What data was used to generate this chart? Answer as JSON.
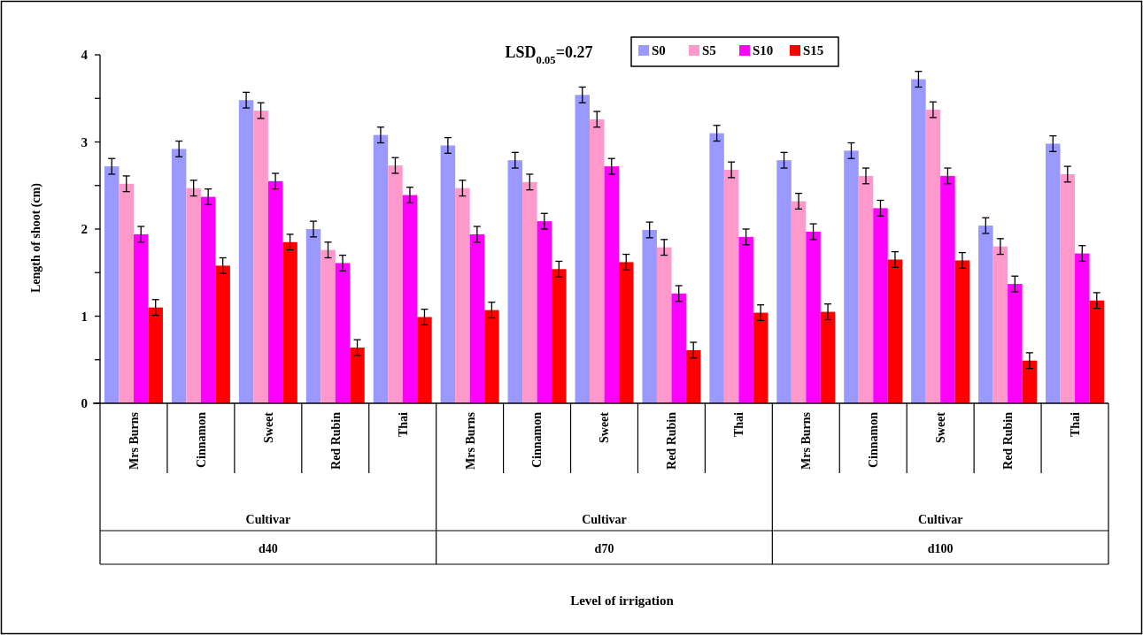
{
  "chart_data": {
    "type": "bar",
    "ylabel": "Length of shoot (cm)",
    "categories": [
      "Mrs Burns",
      "Cinnamon",
      "Sweet",
      "Red Rubin",
      "Thai",
      "Mrs Burns",
      "Cinnamon",
      "Sweet",
      "Red Rubin",
      "Thai",
      "Mrs Burns",
      "Cinnamon",
      "Sweet",
      "Red Rubin",
      "Thai"
    ],
    "annotations": [
      "LSD$_{0.05}$=0.27",
      "Level of irrigation",
      "Cultivar",
      "d40",
      "Cultivar",
      "d70",
      "Cultivar",
      "d100"
    ],
    "series": [
      {
        "name": "S0",
        "color": "#9999ff",
        "values": [
          2.72,
          2.92,
          3.48,
          2.0,
          3.08,
          2.96,
          2.79,
          3.54,
          1.99,
          3.1,
          2.79,
          2.9,
          3.72,
          2.04,
          2.98
        ],
        "errors": [
          0.09,
          0.09,
          0.09,
          0.09,
          0.09,
          0.09,
          0.09,
          0.09,
          0.09,
          0.09,
          0.09,
          0.09,
          0.09,
          0.09,
          0.09
        ]
      },
      {
        "name": "S5",
        "color": "#ff99cc",
        "values": [
          2.52,
          2.47,
          3.36,
          1.76,
          2.73,
          2.47,
          2.54,
          3.26,
          1.79,
          2.68,
          2.32,
          2.61,
          3.37,
          1.8,
          2.63
        ],
        "errors": [
          0.09,
          0.09,
          0.09,
          0.09,
          0.09,
          0.09,
          0.09,
          0.09,
          0.09,
          0.09,
          0.09,
          0.09,
          0.09,
          0.09,
          0.09
        ]
      },
      {
        "name": "S10",
        "color": "#ff00ff",
        "values": [
          1.94,
          2.37,
          2.55,
          1.61,
          2.39,
          1.94,
          2.09,
          2.72,
          1.26,
          1.91,
          1.97,
          2.24,
          2.61,
          1.37,
          1.72
        ],
        "errors": [
          0.09,
          0.09,
          0.09,
          0.09,
          0.09,
          0.09,
          0.09,
          0.09,
          0.09,
          0.09,
          0.09,
          0.09,
          0.09,
          0.09,
          0.09
        ]
      },
      {
        "name": "S15",
        "color": "#ff0000",
        "values": [
          1.1,
          1.58,
          1.85,
          0.64,
          0.99,
          1.07,
          1.54,
          1.62,
          0.61,
          1.04,
          1.05,
          1.65,
          1.64,
          0.49,
          1.18
        ],
        "errors": [
          0.09,
          0.09,
          0.09,
          0.09,
          0.09,
          0.09,
          0.09,
          0.09,
          0.09,
          0.09,
          0.09,
          0.09,
          0.09,
          0.09,
          0.09
        ]
      }
    ],
    "ylim": [
      0,
      4
    ],
    "yticks": [
      0,
      {
        "value": 0.5,
        "label": null
      },
      1,
      {
        "value": 1.5,
        "label": null
      },
      2,
      {
        "value": 2.5,
        "label": null
      },
      3,
      {
        "value": 3.5,
        "label": null
      },
      4
    ],
    "grid": false,
    "legend": "top right"
  }
}
